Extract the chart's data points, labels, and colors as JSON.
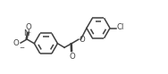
{
  "bg_color": "#ffffff",
  "line_color": "#404040",
  "line_width": 1.1,
  "font_size": 6.2,
  "figsize": [
    1.88,
    0.83
  ],
  "dpi": 100,
  "xlim": [
    0,
    10
  ],
  "ylim": [
    0,
    4.5
  ]
}
